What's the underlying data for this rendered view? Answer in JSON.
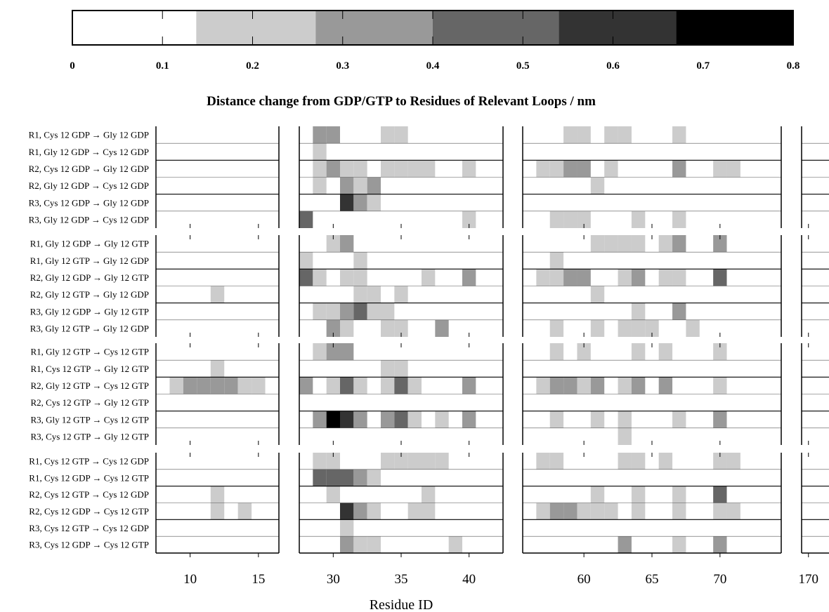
{
  "chart_data": {
    "type": "heatmap",
    "title": "Distance change from GDP/GTP to Residues of Relevant Loops / nm",
    "xlabel": "Residue ID",
    "colorbar": {
      "ticks": [
        "0",
        "0.1",
        "0.2",
        "0.3",
        "0.4",
        "0.5",
        "0.6",
        "0.7",
        "0.8"
      ],
      "range": [
        0,
        0.8
      ],
      "levels": [
        {
          "min": 0.0,
          "max": 0.1375,
          "color": "#ffffff"
        },
        {
          "min": 0.1375,
          "max": 0.27,
          "color": "#cccccc"
        },
        {
          "min": 0.27,
          "max": 0.4,
          "color": "#999999"
        },
        {
          "min": 0.4,
          "max": 0.54,
          "color": "#666666"
        },
        {
          "min": 0.54,
          "max": 0.67,
          "color": "#333333"
        },
        {
          "min": 0.67,
          "max": 0.8,
          "color": "#000000"
        }
      ]
    },
    "panels": [
      {
        "name": "panel-1",
        "xlim": [
          7.5,
          16.5
        ],
        "ticks": [
          10,
          15
        ],
        "tick_labels": [
          "10",
          "15"
        ]
      },
      {
        "name": "panel-2",
        "xlim": [
          27.5,
          42.5
        ],
        "ticks": [
          30,
          35,
          40
        ],
        "tick_labels": [
          "30",
          "35",
          "40"
        ]
      },
      {
        "name": "panel-3",
        "xlim": [
          55.5,
          74.5
        ],
        "ticks": [
          60,
          65,
          70
        ],
        "tick_labels": [
          "60",
          "65",
          "70"
        ]
      },
      {
        "name": "panel-4",
        "xlim": [
          169.5,
          171.5
        ],
        "ticks": [
          170
        ],
        "tick_labels": [
          "170"
        ]
      }
    ],
    "groups": [
      {
        "rows": [
          {
            "label": "R1, Cys 12 GDP → Gly 12 GDP",
            "cells": [
              [
                29,
                0.35
              ],
              [
                30,
                0.35
              ],
              [
                34,
                0.2
              ],
              [
                35,
                0.2
              ],
              [
                59,
                0.2
              ],
              [
                60,
                0.2
              ],
              [
                62,
                0.2
              ],
              [
                63,
                0.2
              ],
              [
                67,
                0.2
              ]
            ]
          },
          {
            "label": "R1, Gly 12 GDP → Cys 12 GDP",
            "cells": [
              [
                29,
                0.2
              ]
            ]
          },
          {
            "label": "R2, Cys 12 GDP → Gly 12 GDP",
            "cells": [
              [
                29,
                0.2
              ],
              [
                30,
                0.35
              ],
              [
                31,
                0.2
              ],
              [
                32,
                0.2
              ],
              [
                34,
                0.2
              ],
              [
                35,
                0.2
              ],
              [
                36,
                0.2
              ],
              [
                37,
                0.2
              ],
              [
                40,
                0.2
              ],
              [
                57,
                0.2
              ],
              [
                58,
                0.2
              ],
              [
                59,
                0.35
              ],
              [
                60,
                0.35
              ],
              [
                62,
                0.2
              ],
              [
                67,
                0.35
              ],
              [
                70,
                0.2
              ],
              [
                71,
                0.2
              ]
            ]
          },
          {
            "label": "R2, Gly 12 GDP → Cys 12 GDP",
            "cells": [
              [
                29,
                0.2
              ],
              [
                31,
                0.35
              ],
              [
                32,
                0.2
              ],
              [
                33,
                0.35
              ],
              [
                61,
                0.2
              ]
            ]
          },
          {
            "label": "R3, Cys 12 GDP → Gly 12 GDP",
            "cells": [
              [
                31,
                0.6
              ],
              [
                32,
                0.35
              ],
              [
                33,
                0.2
              ]
            ]
          },
          {
            "label": "R3, Gly 12 GDP → Cys 12 GDP",
            "cells": [
              [
                28,
                0.45
              ],
              [
                40,
                0.2
              ],
              [
                58,
                0.2
              ],
              [
                59,
                0.2
              ],
              [
                60,
                0.2
              ],
              [
                64,
                0.2
              ],
              [
                67,
                0.2
              ]
            ]
          }
        ]
      },
      {
        "rows": [
          {
            "label": "R1, Gly 12 GDP → Gly 12 GTP",
            "cells": [
              [
                30,
                0.2
              ],
              [
                31,
                0.35
              ],
              [
                61,
                0.2
              ],
              [
                62,
                0.2
              ],
              [
                63,
                0.2
              ],
              [
                64,
                0.2
              ],
              [
                66,
                0.2
              ],
              [
                67,
                0.35
              ],
              [
                70,
                0.35
              ]
            ]
          },
          {
            "label": "R1, Gly 12 GTP → Gly 12 GDP",
            "cells": [
              [
                28,
                0.2
              ],
              [
                32,
                0.2
              ],
              [
                58,
                0.2
              ]
            ]
          },
          {
            "label": "R2, Gly 12 GDP → Gly 12 GTP",
            "cells": [
              [
                28,
                0.45
              ],
              [
                29,
                0.2
              ],
              [
                31,
                0.2
              ],
              [
                32,
                0.2
              ],
              [
                37,
                0.2
              ],
              [
                40,
                0.35
              ],
              [
                57,
                0.2
              ],
              [
                58,
                0.2
              ],
              [
                59,
                0.35
              ],
              [
                60,
                0.35
              ],
              [
                63,
                0.2
              ],
              [
                64,
                0.35
              ],
              [
                66,
                0.2
              ],
              [
                67,
                0.2
              ],
              [
                70,
                0.45
              ]
            ]
          },
          {
            "label": "R2, Gly 12 GTP → Gly 12 GDP",
            "cells": [
              [
                12,
                0.2
              ],
              [
                32,
                0.2
              ],
              [
                33,
                0.2
              ],
              [
                35,
                0.2
              ],
              [
                61,
                0.2
              ]
            ]
          },
          {
            "label": "R3, Gly 12 GDP → Gly 12 GTP",
            "cells": [
              [
                29,
                0.2
              ],
              [
                30,
                0.2
              ],
              [
                31,
                0.35
              ],
              [
                32,
                0.45
              ],
              [
                33,
                0.2
              ],
              [
                34,
                0.2
              ],
              [
                64,
                0.2
              ],
              [
                67,
                0.35
              ]
            ]
          },
          {
            "label": "R3, Gly 12 GTP → Gly 12 GDP",
            "cells": [
              [
                30,
                0.35
              ],
              [
                31,
                0.2
              ],
              [
                34,
                0.2
              ],
              [
                35,
                0.2
              ],
              [
                38,
                0.35
              ],
              [
                58,
                0.2
              ],
              [
                61,
                0.2
              ],
              [
                63,
                0.2
              ],
              [
                64,
                0.2
              ],
              [
                65,
                0.2
              ],
              [
                68,
                0.2
              ]
            ]
          }
        ]
      },
      {
        "rows": [
          {
            "label": "R1, Gly 12 GTP → Cys 12 GTP",
            "cells": [
              [
                29,
                0.2
              ],
              [
                30,
                0.35
              ],
              [
                31,
                0.35
              ],
              [
                58,
                0.2
              ],
              [
                60,
                0.2
              ],
              [
                64,
                0.2
              ],
              [
                66,
                0.2
              ],
              [
                70,
                0.2
              ]
            ]
          },
          {
            "label": "R1, Cys 12 GTP → Gly 12 GTP",
            "cells": [
              [
                12,
                0.2
              ],
              [
                34,
                0.2
              ],
              [
                35,
                0.2
              ]
            ]
          },
          {
            "label": "R2, Gly 12 GTP → Cys 12 GTP",
            "cells": [
              [
                9,
                0.2
              ],
              [
                10,
                0.35
              ],
              [
                11,
                0.35
              ],
              [
                12,
                0.35
              ],
              [
                13,
                0.35
              ],
              [
                14,
                0.2
              ],
              [
                15,
                0.2
              ],
              [
                28,
                0.35
              ],
              [
                30,
                0.2
              ],
              [
                31,
                0.45
              ],
              [
                32,
                0.2
              ],
              [
                34,
                0.2
              ],
              [
                35,
                0.45
              ],
              [
                36,
                0.2
              ],
              [
                40,
                0.35
              ],
              [
                57,
                0.2
              ],
              [
                58,
                0.35
              ],
              [
                59,
                0.35
              ],
              [
                60,
                0.2
              ],
              [
                61,
                0.35
              ],
              [
                63,
                0.2
              ],
              [
                64,
                0.35
              ],
              [
                66,
                0.35
              ],
              [
                70,
                0.2
              ]
            ]
          },
          {
            "label": "R2, Cys 12 GTP → Gly 12 GTP",
            "cells": []
          },
          {
            "label": "R3, Gly 12 GTP → Cys 12 GTP",
            "cells": [
              [
                29,
                0.35
              ],
              [
                30,
                0.75
              ],
              [
                31,
                0.6
              ],
              [
                32,
                0.35
              ],
              [
                34,
                0.35
              ],
              [
                35,
                0.45
              ],
              [
                36,
                0.2
              ],
              [
                38,
                0.2
              ],
              [
                40,
                0.35
              ],
              [
                58,
                0.2
              ],
              [
                61,
                0.2
              ],
              [
                63,
                0.2
              ],
              [
                67,
                0.2
              ],
              [
                70,
                0.35
              ]
            ]
          },
          {
            "label": "R3, Cys 12 GTP → Gly 12 GTP",
            "cells": [
              [
                63,
                0.2
              ]
            ]
          }
        ]
      },
      {
        "rows": [
          {
            "label": "R1, Cys 12 GTP → Cys 12 GDP",
            "cells": [
              [
                29,
                0.2
              ],
              [
                30,
                0.2
              ],
              [
                34,
                0.2
              ],
              [
                35,
                0.2
              ],
              [
                36,
                0.2
              ],
              [
                37,
                0.2
              ],
              [
                38,
                0.2
              ],
              [
                57,
                0.2
              ],
              [
                58,
                0.2
              ],
              [
                63,
                0.2
              ],
              [
                64,
                0.2
              ],
              [
                66,
                0.2
              ],
              [
                70,
                0.2
              ],
              [
                71,
                0.2
              ]
            ]
          },
          {
            "label": "R1, Cys 12 GDP → Cys 12 GTP",
            "cells": [
              [
                29,
                0.45
              ],
              [
                30,
                0.45
              ],
              [
                31,
                0.45
              ],
              [
                32,
                0.35
              ],
              [
                33,
                0.2
              ]
            ]
          },
          {
            "label": "R2, Cys 12 GTP → Cys 12 GDP",
            "cells": [
              [
                12,
                0.2
              ],
              [
                30,
                0.2
              ],
              [
                37,
                0.2
              ],
              [
                61,
                0.2
              ],
              [
                64,
                0.2
              ],
              [
                67,
                0.2
              ],
              [
                70,
                0.45
              ]
            ]
          },
          {
            "label": "R2, Cys 12 GDP → Cys 12 GTP",
            "cells": [
              [
                12,
                0.2
              ],
              [
                14,
                0.2
              ],
              [
                31,
                0.6
              ],
              [
                32,
                0.35
              ],
              [
                33,
                0.2
              ],
              [
                36,
                0.2
              ],
              [
                37,
                0.2
              ],
              [
                57,
                0.2
              ],
              [
                58,
                0.35
              ],
              [
                59,
                0.35
              ],
              [
                60,
                0.2
              ],
              [
                61,
                0.2
              ],
              [
                62,
                0.2
              ],
              [
                64,
                0.2
              ],
              [
                67,
                0.2
              ],
              [
                70,
                0.2
              ],
              [
                71,
                0.2
              ]
            ]
          },
          {
            "label": "R3, Cys 12 GTP → Cys 12 GDP",
            "cells": [
              [
                31,
                0.2
              ]
            ]
          },
          {
            "label": "R3, Cys 12 GDP → Cys 12 GTP",
            "cells": [
              [
                31,
                0.35
              ],
              [
                32,
                0.2
              ],
              [
                33,
                0.2
              ],
              [
                39,
                0.2
              ],
              [
                63,
                0.35
              ],
              [
                67,
                0.2
              ],
              [
                70,
                0.35
              ]
            ]
          }
        ]
      }
    ]
  }
}
